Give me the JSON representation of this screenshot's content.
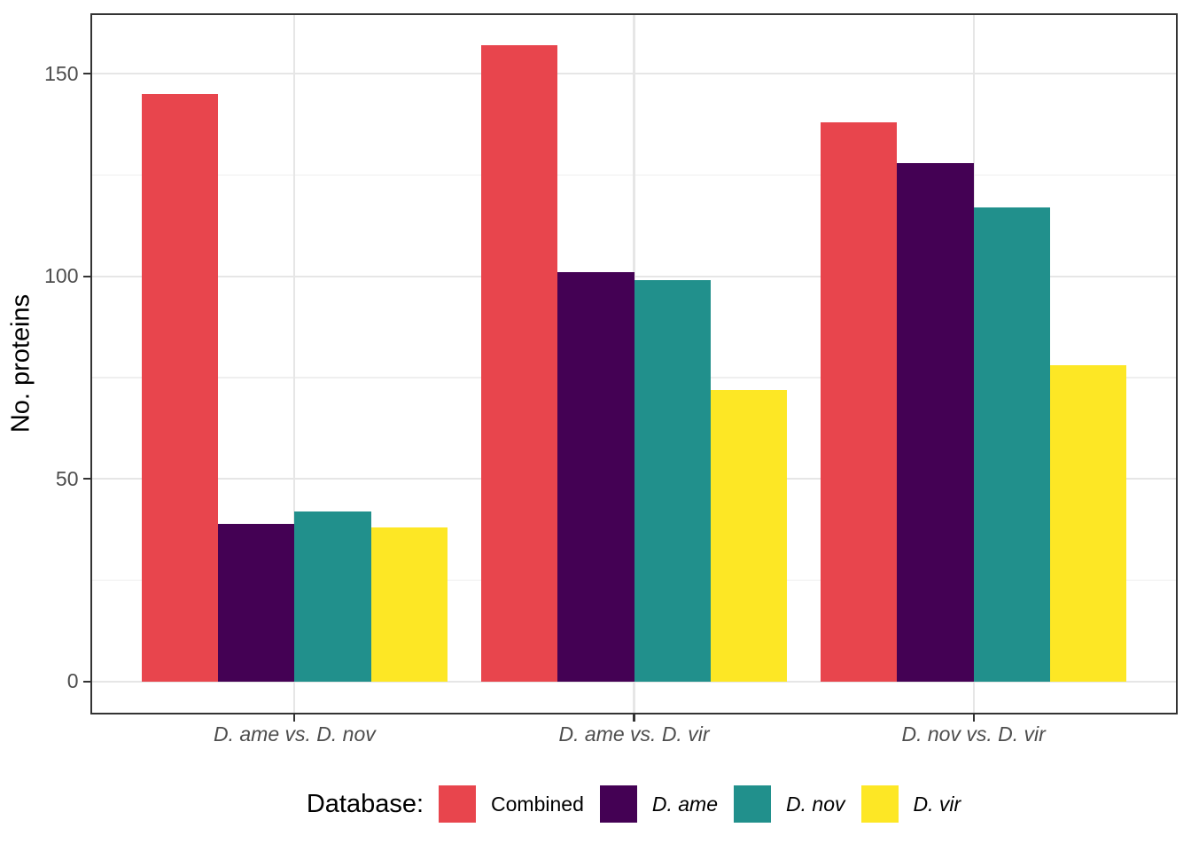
{
  "chart_data": {
    "type": "bar",
    "categories": [
      "D. ame vs. D. nov",
      "D. ame vs. D. vir",
      "D. nov vs. D. vir"
    ],
    "series": [
      {
        "name": "Combined",
        "color": "#e8454d",
        "italic_label": false,
        "values": [
          145,
          157,
          138
        ]
      },
      {
        "name": "D. ame",
        "color": "#440154",
        "italic_label": true,
        "values": [
          39,
          101,
          128
        ]
      },
      {
        "name": "D. nov",
        "color": "#21908c",
        "italic_label": true,
        "values": [
          42,
          99,
          117
        ]
      },
      {
        "name": "D. vir",
        "color": "#fde725",
        "italic_label": true,
        "values": [
          38,
          72,
          78
        ]
      }
    ],
    "title": "",
    "xlabel": "",
    "ylabel": "No. proteins",
    "y_major_ticks": [
      0,
      50,
      100,
      150
    ],
    "y_minor_gridlines": [
      25,
      75,
      125
    ],
    "ylim": [
      -7.85,
      164.85
    ],
    "grid": true,
    "legend_position": "bottom",
    "legend_title": "Database:"
  }
}
